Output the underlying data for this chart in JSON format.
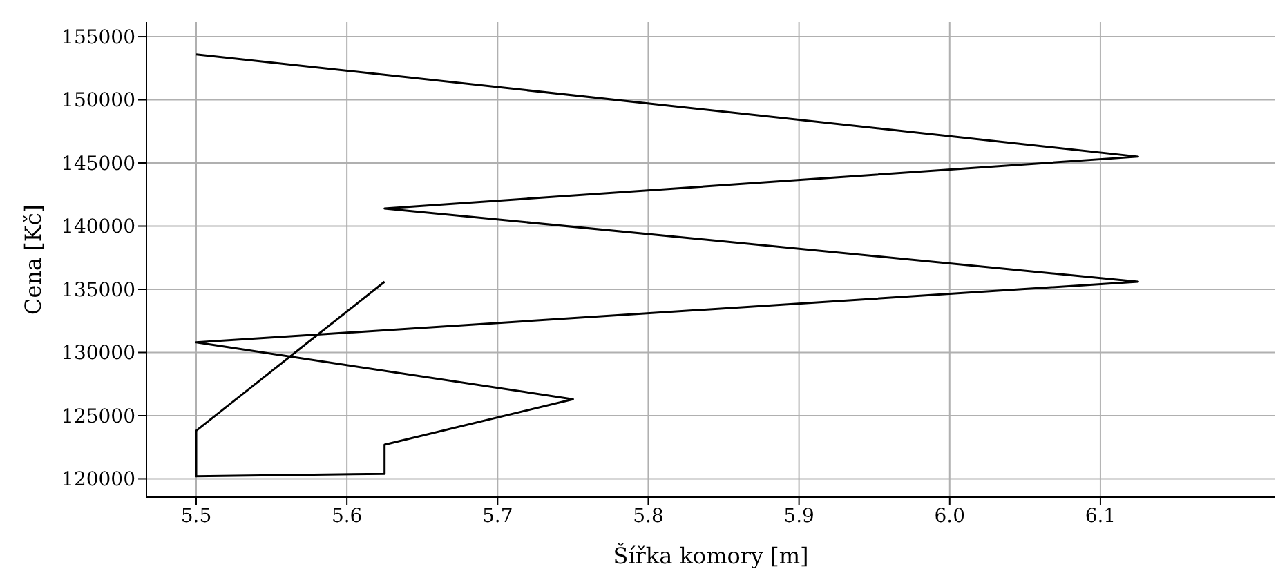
{
  "chart_data": {
    "type": "line",
    "xlabel": "Šířka komory [m]",
    "ylabel": "Cena [Kč]",
    "x": [
      5.625,
      5.5,
      5.5,
      5.625,
      5.625,
      5.75,
      5.5,
      6.125,
      5.625,
      6.125,
      5.5
    ],
    "series": [
      {
        "color": "#000000",
        "values": [
          135600,
          123800,
          120200,
          120400,
          122700,
          126300,
          130800,
          135600,
          141400,
          145500,
          153600
        ]
      }
    ],
    "xlim": [
      5.467,
      6.216
    ],
    "xticks": [
      5.5,
      5.6,
      5.7,
      5.8,
      5.9,
      {
        "value": 6,
        "label": "6.0"
      },
      6.1
    ],
    "ylim": [
      118550,
      156150
    ],
    "yticks": [
      120000,
      125000,
      130000,
      135000,
      140000,
      145000,
      150000,
      155000
    ],
    "grid": true,
    "marker": "none",
    "line_style": "solid"
  }
}
